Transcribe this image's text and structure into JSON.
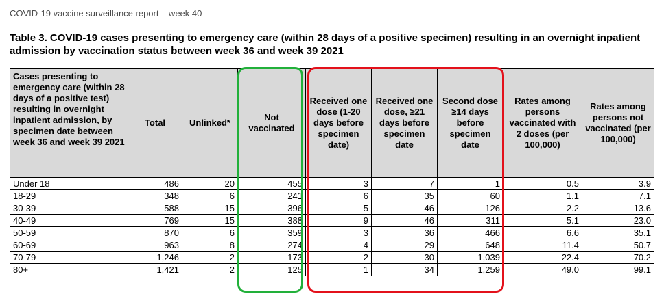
{
  "header_line": "COVID-19 vaccine surveillance report – week 40",
  "title": "Table 3. COVID-19 cases presenting to emergency care (within 28 days of a positive specimen) resulting in an overnight inpatient admission by vaccination status between week 36 and week 39 2021",
  "table": {
    "columns": [
      "Cases presenting to emergency care (within 28 days of a positive test) resulting in overnight inpatient admission, by specimen date between week 36 and week 39 2021",
      "Total",
      "Unlinked*",
      "Not vaccinated",
      "Received one dose (1-20 days before specimen date)",
      "Received one dose, ≥21 days before specimen date",
      "Second dose ≥14 days before specimen date",
      "Rates among persons vaccinated with 2 doses (per 100,000)",
      "Rates among persons not vaccinated (per 100,000)"
    ],
    "rows": [
      [
        "Under 18",
        "486",
        "20",
        "455",
        "3",
        "7",
        "1",
        "0.5",
        "3.9"
      ],
      [
        "18-29",
        "348",
        "6",
        "241",
        "6",
        "35",
        "60",
        "1.1",
        "7.1"
      ],
      [
        "30-39",
        "588",
        "15",
        "396",
        "5",
        "46",
        "126",
        "2.2",
        "13.6"
      ],
      [
        "40-49",
        "769",
        "15",
        "388",
        "9",
        "46",
        "311",
        "5.1",
        "23.0"
      ],
      [
        "50-59",
        "870",
        "6",
        "359",
        "3",
        "36",
        "466",
        "6.6",
        "35.1"
      ],
      [
        "60-69",
        "963",
        "8",
        "274",
        "4",
        "29",
        "648",
        "11.4",
        "50.7"
      ],
      [
        "70-79",
        "1,246",
        "2",
        "173",
        "2",
        "30",
        "1,039",
        "22.4",
        "70.2"
      ],
      [
        "80+",
        "1,421",
        "2",
        "125",
        "1",
        "34",
        "1,259",
        "49.0",
        "99.1"
      ]
    ]
  },
  "highlights": {
    "green_color": "#22b03a",
    "red_color": "#e3111b"
  }
}
